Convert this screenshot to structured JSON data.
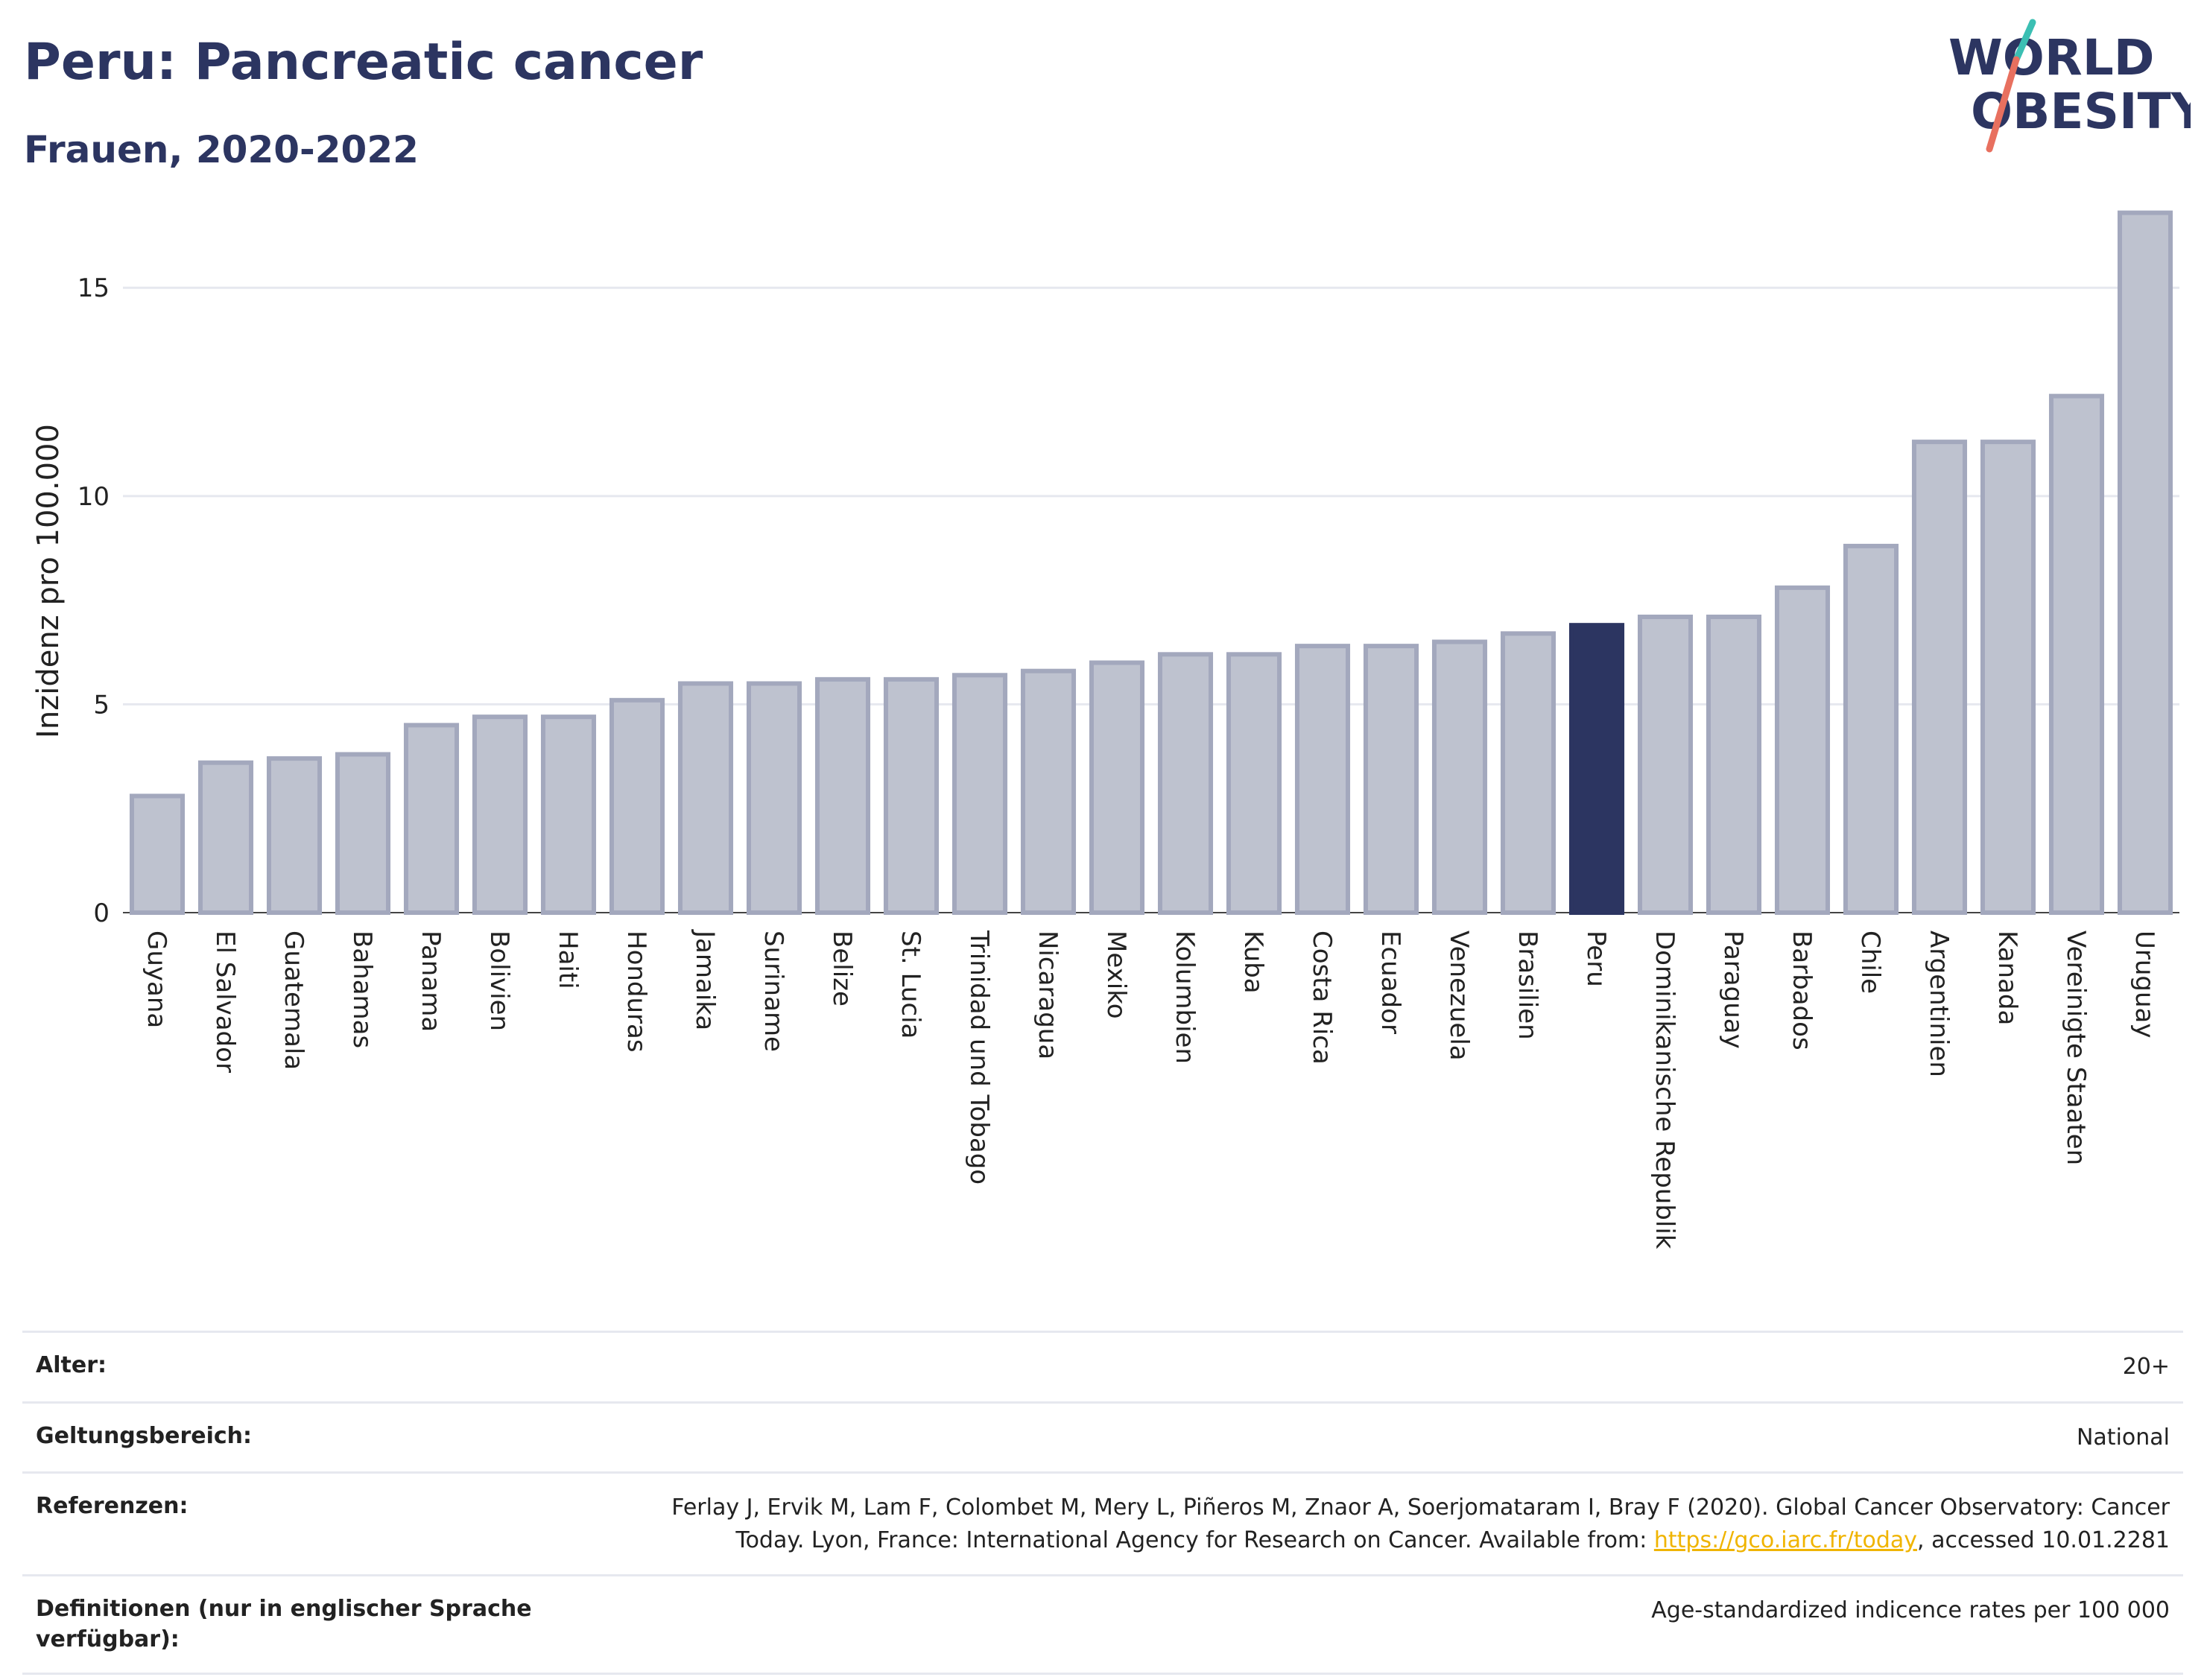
{
  "header": {
    "title": "Peru: Pancreatic cancer",
    "subtitle": "Frauen, 2020-2022"
  },
  "logo": {
    "line1": "WORLD",
    "line2": "OBESITY",
    "colors": {
      "text": "#2c3561",
      "slash_top": "#3bbfb3",
      "slash_bottom": "#e8705f"
    }
  },
  "chart_data": {
    "type": "bar",
    "ylabel": "Inzidenz pro 100.000",
    "ylim": [
      0,
      16.9
    ],
    "yticks": [
      0,
      5,
      10,
      15
    ],
    "grid": true,
    "categories": [
      "Guyana",
      "El Salvador",
      "Guatemala",
      "Bahamas",
      "Panama",
      "Bolivien",
      "Haiti",
      "Honduras",
      "Jamaika",
      "Suriname",
      "Belize",
      "St. Lucia",
      "Trinidad und Tobago",
      "Nicaragua",
      "Mexiko",
      "Kolumbien",
      "Kuba",
      "Costa Rica",
      "Ecuador",
      "Venezuela",
      "Brasilien",
      "Peru",
      "Dominikanische Republik",
      "Paraguay",
      "Barbados",
      "Chile",
      "Argentinien",
      "Kanada",
      "Vereinigte Staaten",
      "Uruguay"
    ],
    "values": [
      2.8,
      3.6,
      3.7,
      3.8,
      4.5,
      4.7,
      4.7,
      5.1,
      5.5,
      5.5,
      5.6,
      5.6,
      5.7,
      5.8,
      6.0,
      6.2,
      6.2,
      6.4,
      6.4,
      6.5,
      6.7,
      6.9,
      7.1,
      7.1,
      7.8,
      8.8,
      11.3,
      11.3,
      12.4,
      16.8
    ],
    "highlight": "Peru",
    "colors": {
      "bar": "#bec2cf",
      "bar_edge": "#a3a8bd",
      "highlight": "#2c3561",
      "grid": "#e6e8ef"
    }
  },
  "meta": [
    {
      "label": "Alter:",
      "value": "20+"
    },
    {
      "label": "Geltungsbereich:",
      "value": "National"
    },
    {
      "label": "Referenzen:",
      "value_pre": "Ferlay J, Ervik M, Lam F, Colombet M, Mery L, Piñeros M, Znaor A, Soerjomataram I, Bray F (2020). Global Cancer Observatory: Cancer Today. Lyon, France: International Agency for Research on Cancer. Available from: ",
      "link": "https://gco.iarc.fr/today",
      "value_post": ", accessed 10.01.2281"
    },
    {
      "label": "Definitionen (nur in englischer Sprache verfügbar):",
      "value": "Age-standardized indicence rates per 100 000"
    }
  ]
}
